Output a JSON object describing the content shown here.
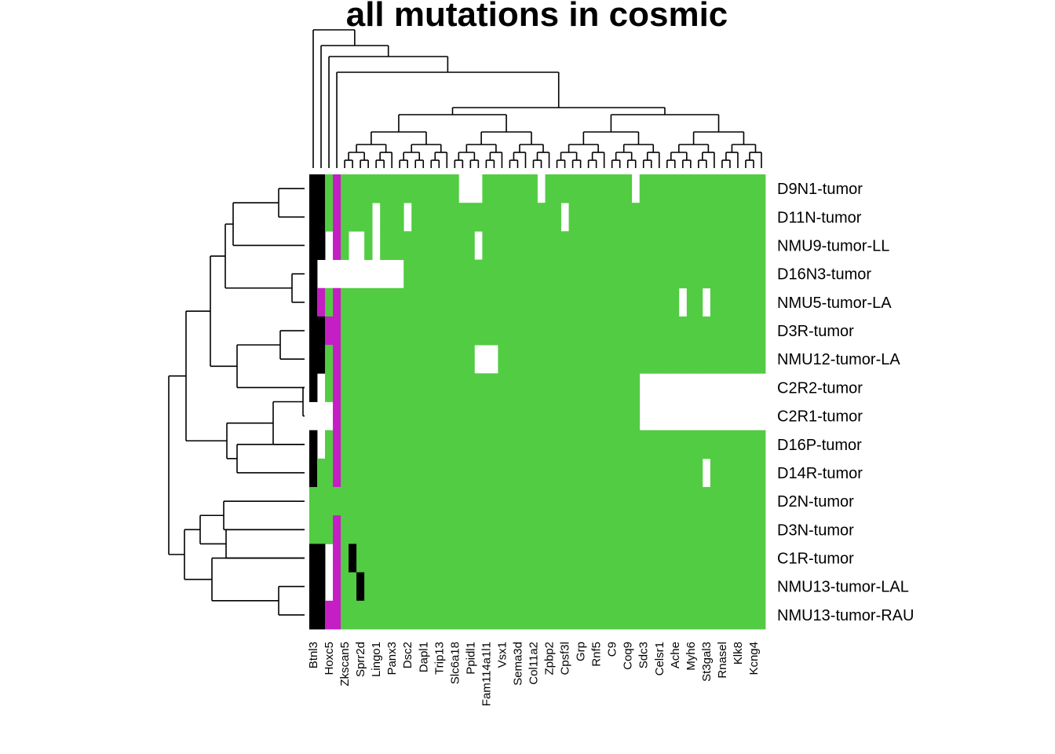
{
  "chart_data": {
    "type": "heatmap",
    "title": "all mutations in cosmic",
    "colors": {
      "none": "#ffffff",
      "mutated": "#52cc42",
      "black": "#000000",
      "magenta": "#c41ec4"
    },
    "rows": [
      "D9N1-tumor",
      "D11N-tumor",
      "NMU9-tumor-LL",
      "D16N3-tumor",
      "NMU5-tumor-LA",
      "D3R-tumor",
      "NMU12-tumor-LA",
      "C2R2-tumor",
      "C2R1-tumor",
      "D16P-tumor",
      "D14R-tumor",
      "D2N-tumor",
      "D3N-tumor",
      "C1R-tumor",
      "NMU13-tumor-LAL",
      "NMU13-tumor-RAU"
    ],
    "column_labels": [
      "Btnl3",
      "Hoxc5",
      "Zkscan5",
      "Sprr2d",
      "Lingo1",
      "Panx3",
      "Dsc2",
      "Dapl1",
      "Trip13",
      "Slc6a18",
      "Ppidl1",
      "Fam114a1l1",
      "Vsx1",
      "Sema3d",
      "Col11a2",
      "Zpbp2",
      "Cpsf3l",
      "Grp",
      "Rnf5",
      "C9",
      "Coq9",
      "Sdc3",
      "Celsr1",
      "Ache",
      "Myh6",
      "St3gal3",
      "Rnasel",
      "Klk8",
      "Kcng4"
    ],
    "n_columns": 58,
    "values_legend": "0 = white (no mutation), 1 = green, 2 = black, 3 = magenta",
    "matrix": [
      "2213111111111111111000111111101111111111101111111111111111",
      "2213111101110111111111111111111101111111111111111111111111",
      "2203100101111111111110111111111111111111111111111111111111",
      "2000000000001111111111111111111111111111111111111111111111",
      "2313111111111111111111111111111111111111111111101101111111",
      "2233111111111111111111111111111111111111111111111111111111",
      "2213111111111111111110001111111111111111111111111111111111",
      "2013111111111111111111111111111111111111110000000000000000",
      "0003111111111111111111111111111111111111110000000000000000",
      "2013111111111111111111111111111111111111111111111111111111",
      "2113111111111111111111111111111111111111111111111101111111",
      "1111111111111111111111111111111111111111111111111111111111",
      "1113111111111111111111111111111111111111111111111111111111",
      "2203121111111111111111111111111111111111111111111111111111",
      "2203112111111111111111111111111111111111111111111111111111",
      "2233111111111111111111111111111111111111111111111111111111"
    ]
  }
}
